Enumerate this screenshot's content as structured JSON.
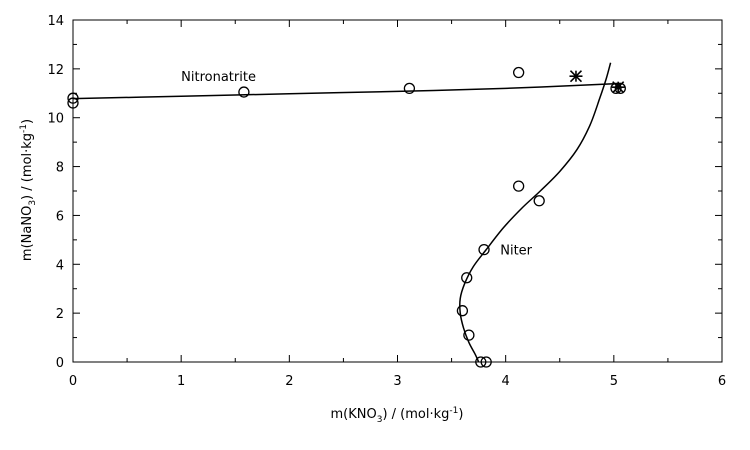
{
  "chart_data": {
    "type": "scatter",
    "title": "",
    "xlabel": {
      "main": "m(KNO",
      "sub": "3",
      "mid": ") / (mol·kg",
      "sup": "-1",
      "end": ")"
    },
    "ylabel": {
      "main": "m(NaNO",
      "sub": "3",
      "mid": ") / (mol·kg",
      "sup": "-1",
      "end": ")"
    },
    "xlim": [
      0,
      6
    ],
    "ylim": [
      0,
      14
    ],
    "xticks": [
      "0",
      "1",
      "2",
      "3",
      "4",
      "5",
      "6"
    ],
    "yticks": [
      "0",
      "2",
      "4",
      "6",
      "8",
      "10",
      "12",
      "14"
    ],
    "grid": false,
    "series": [
      {
        "marker": "circle",
        "points": [
          [
            0,
            10.6
          ],
          [
            0,
            10.8
          ],
          [
            1.58,
            11.05
          ],
          [
            3.11,
            11.2
          ],
          [
            4.12,
            11.85
          ],
          [
            4.12,
            7.2
          ],
          [
            4.31,
            6.6
          ],
          [
            3.8,
            4.6
          ],
          [
            3.64,
            3.45
          ],
          [
            3.6,
            2.1
          ],
          [
            3.66,
            1.1
          ],
          [
            3.77,
            0
          ],
          [
            3.82,
            0
          ],
          [
            5.02,
            11.2
          ],
          [
            5.06,
            11.2
          ]
        ]
      },
      {
        "marker": "star",
        "points": [
          [
            4.65,
            11.7
          ],
          [
            5.04,
            11.25
          ]
        ]
      }
    ],
    "curves": [
      {
        "label": "Nitronatrite",
        "points": [
          [
            0,
            10.78
          ],
          [
            1,
            10.88
          ],
          [
            2,
            10.98
          ],
          [
            3,
            11.08
          ],
          [
            4,
            11.2
          ],
          [
            4.95,
            11.38
          ],
          [
            5.05,
            11.4
          ]
        ]
      },
      {
        "label": "Niter",
        "points": [
          [
            3.75,
            0
          ],
          [
            3.72,
            0.3
          ],
          [
            3.66,
            0.8
          ],
          [
            3.61,
            1.4
          ],
          [
            3.58,
            2.0
          ],
          [
            3.58,
            2.6
          ],
          [
            3.62,
            3.2
          ],
          [
            3.7,
            3.9
          ],
          [
            3.82,
            4.6
          ],
          [
            3.98,
            5.5
          ],
          [
            4.15,
            6.3
          ],
          [
            4.32,
            7.0
          ],
          [
            4.5,
            7.8
          ],
          [
            4.66,
            8.7
          ],
          [
            4.78,
            9.7
          ],
          [
            4.87,
            10.8
          ],
          [
            4.93,
            11.6
          ],
          [
            4.97,
            12.25
          ]
        ]
      }
    ],
    "annotations": [
      {
        "text": "Nitronatrite",
        "x": 1.0,
        "y": 11.5
      },
      {
        "text": "Niter",
        "x": 3.95,
        "y": 4.4
      }
    ]
  }
}
